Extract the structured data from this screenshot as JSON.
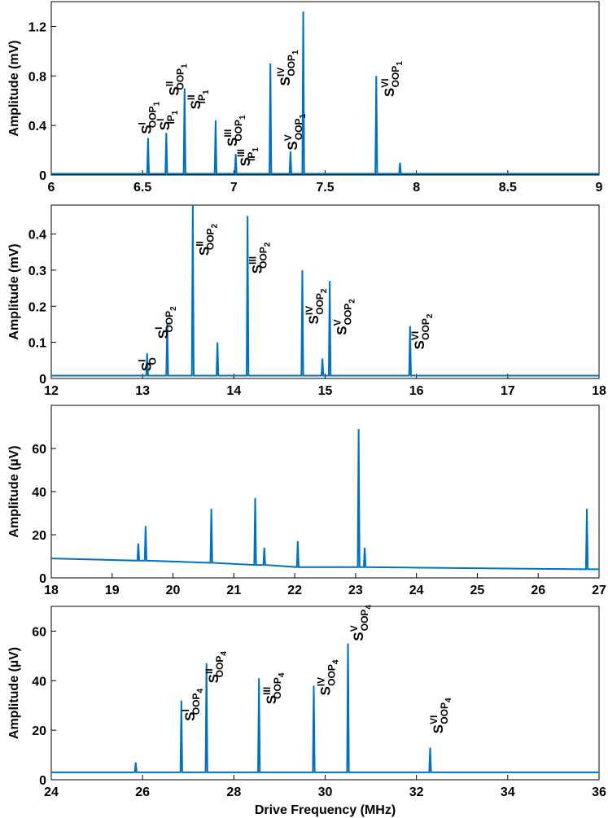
{
  "chart_data": [
    {
      "type": "line",
      "ylabel": "Amplitude (mV)",
      "color": "#0072bd",
      "xlim": [
        6,
        9
      ],
      "ylim": [
        0,
        1.4
      ],
      "xticks": [
        6,
        6.5,
        7,
        7.5,
        8,
        8.5,
        9
      ],
      "yticks": [
        0,
        0.4,
        0.8,
        1.2
      ],
      "x": [
        6,
        6.525,
        6.53,
        6.535,
        6.625,
        6.63,
        6.635,
        6.725,
        6.73,
        6.735,
        6.895,
        6.9,
        6.905,
        7.005,
        7.01,
        7.015,
        7.195,
        7.2,
        7.205,
        7.305,
        7.31,
        7.315,
        7.375,
        7.38,
        7.385,
        7.775,
        7.78,
        7.785,
        7.905,
        7.91,
        7.915,
        9
      ],
      "values": [
        0.01,
        0.01,
        0.3,
        0.01,
        0.01,
        0.34,
        0.01,
        0.01,
        0.7,
        0.01,
        0.01,
        0.44,
        0.01,
        0.01,
        0.17,
        0.01,
        0.01,
        0.9,
        0.01,
        0.01,
        0.19,
        0.01,
        0.01,
        1.32,
        0.01,
        0.01,
        0.8,
        0.01,
        0.01,
        0.1,
        0.01,
        0.01
      ],
      "annotations": [
        {
          "text": "S",
          "sup": "I",
          "sub": "OOP",
          "subsub": "1",
          "x": 6.52,
          "y": 0.33
        },
        {
          "text": "S",
          "sup": "I",
          "sub": "IP",
          "subsub": "1",
          "x": 6.62,
          "y": 0.36
        },
        {
          "text": "S",
          "sup": "II",
          "sub": "OOP",
          "subsub": "1",
          "x": 6.67,
          "y": 0.64
        },
        {
          "text": "S",
          "sup": "II",
          "sub": "IP",
          "subsub": "1",
          "x": 6.79,
          "y": 0.53
        },
        {
          "text": "S",
          "sup": "III",
          "sub": "OOP",
          "subsub": "1",
          "x": 6.99,
          "y": 0.23
        },
        {
          "text": "S",
          "sup": "III",
          "sub": "IP",
          "subsub": "1",
          "x": 7.06,
          "y": 0.07
        },
        {
          "text": "S",
          "sup": "IV",
          "sub": "OOP",
          "subsub": "1",
          "x": 7.28,
          "y": 0.72
        },
        {
          "text": "S",
          "sup": "V",
          "sub": "OOP",
          "subsub": "1",
          "x": 7.32,
          "y": 0.2
        },
        {
          "text": "S",
          "sup": "VI",
          "sub": "OOP",
          "subsub": "1",
          "x": 7.85,
          "y": 0.63
        }
      ]
    },
    {
      "type": "line",
      "ylabel": "Amplitude (mV)",
      "color": "#0072bd",
      "xlim": [
        12,
        18
      ],
      "ylim": [
        0,
        0.48
      ],
      "xticks": [
        12,
        13,
        14,
        15,
        16,
        17,
        18
      ],
      "yticks": [
        0,
        0.1,
        0.2,
        0.3,
        0.4
      ],
      "x": [
        12,
        13.04,
        13.05,
        13.06,
        13.26,
        13.27,
        13.28,
        13.54,
        13.55,
        13.56,
        13.81,
        13.82,
        13.83,
        14.14,
        14.15,
        14.16,
        14.74,
        14.75,
        14.76,
        14.96,
        14.97,
        14.98,
        15.04,
        15.05,
        15.06,
        15.92,
        15.93,
        15.94,
        18
      ],
      "values": [
        0.008,
        0.008,
        0.07,
        0.008,
        0.008,
        0.155,
        0.008,
        0.008,
        0.48,
        0.008,
        0.008,
        0.1,
        0.008,
        0.008,
        0.45,
        0.008,
        0.008,
        0.3,
        0.008,
        0.008,
        0.055,
        0.008,
        0.008,
        0.27,
        0.008,
        0.008,
        0.145,
        0.008,
        0.008
      ],
      "annotations": [
        {
          "text": "S",
          "sup": "I",
          "sub": "O",
          "x": 13.04,
          "y": 0.02
        },
        {
          "text": "S",
          "sup": "I",
          "sub": "OOP",
          "subsub": "2",
          "x": 13.22,
          "y": 0.11
        },
        {
          "text": "S",
          "sup": "II",
          "sub": "OOP",
          "subsub": "2",
          "x": 13.67,
          "y": 0.34
        },
        {
          "text": "S",
          "sup": "III",
          "sub": "OOP",
          "subsub": "2",
          "x": 14.25,
          "y": 0.29
        },
        {
          "text": "S",
          "sup": "IV",
          "sub": "OOP",
          "subsub": "2",
          "x": 14.87,
          "y": 0.15
        },
        {
          "text": "S",
          "sup": "V",
          "sub": "OOP",
          "subsub": "2",
          "x": 15.18,
          "y": 0.12
        },
        {
          "text": "S",
          "sup": "VI",
          "sub": "OOP",
          "subsub": "2",
          "x": 16.03,
          "y": 0.08
        }
      ]
    },
    {
      "type": "line",
      "ylabel": "Amplitude (µV)",
      "color": "#0072bd",
      "xlim": [
        18,
        27
      ],
      "ylim": [
        0,
        80
      ],
      "xticks": [
        18,
        19,
        20,
        21,
        22,
        23,
        24,
        25,
        26,
        27
      ],
      "yticks": [
        0,
        20,
        40,
        60
      ],
      "x": [
        18,
        19.415,
        19.43,
        19.445,
        19.535,
        19.55,
        19.565,
        20.615,
        20.63,
        20.645,
        21.335,
        21.35,
        21.365,
        21.485,
        21.5,
        21.515,
        22.035,
        22.05,
        22.065,
        23.035,
        23.05,
        23.065,
        23.135,
        23.15,
        23.165,
        26.785,
        26.8,
        26.815,
        27
      ],
      "values": [
        9,
        8,
        16,
        8,
        8,
        24,
        8,
        7,
        32,
        7,
        6,
        37,
        6,
        6,
        14,
        6,
        5,
        17,
        5,
        5,
        69,
        5,
        5,
        14,
        5,
        4,
        32,
        4,
        4
      ]
    },
    {
      "type": "line",
      "ylabel": "Amplitude (µV)",
      "xlabel": "Drive Frequency (MHz)",
      "color": "#0072bd",
      "xlim": [
        24,
        36
      ],
      "ylim": [
        0,
        70
      ],
      "xticks": [
        24,
        26,
        28,
        30,
        32,
        34,
        36
      ],
      "yticks": [
        0,
        20,
        40,
        60
      ],
      "x": [
        24,
        25.83,
        25.85,
        25.87,
        26.83,
        26.85,
        26.87,
        27.38,
        27.4,
        27.42,
        28.53,
        28.55,
        28.57,
        29.73,
        29.75,
        29.77,
        30.48,
        30.5,
        30.52,
        32.28,
        32.3,
        32.32,
        36
      ],
      "values": [
        3,
        3,
        7,
        3,
        3,
        32,
        3,
        3,
        47,
        3,
        3,
        41,
        3,
        3,
        38,
        3,
        3,
        55,
        3,
        3,
        13,
        3,
        3
      ],
      "annotations": [
        {
          "text": "S",
          "sup": "I",
          "sub": "OOP",
          "subsub": "4",
          "x": 27.03,
          "y": 23.7
        },
        {
          "text": "S",
          "sup": "II",
          "sub": "OOP",
          "subsub": "4",
          "x": 27.55,
          "y": 39
        },
        {
          "text": "S",
          "sup": "III",
          "sub": "OOP",
          "subsub": "4",
          "x": 28.81,
          "y": 30.5
        },
        {
          "text": "S",
          "sup": "IV",
          "sub": "OOP",
          "subsub": "4",
          "x": 30.0,
          "y": 34
        },
        {
          "text": "S",
          "sup": "V",
          "sub": "OOP",
          "subsub": "4",
          "x": 30.72,
          "y": 56
        },
        {
          "text": "S",
          "sup": "VI",
          "sub": "OOP",
          "subsub": "4",
          "x": 32.47,
          "y": 18.6
        }
      ]
    }
  ]
}
